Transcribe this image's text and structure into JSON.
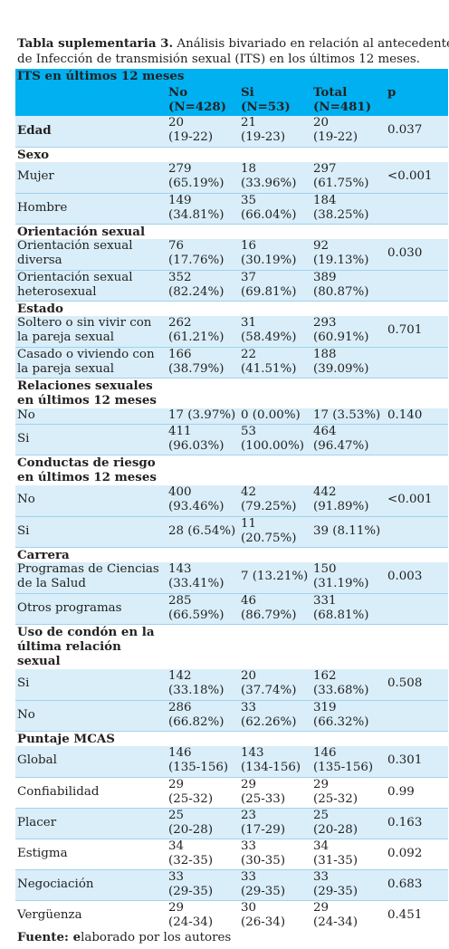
{
  "caption": {
    "bold": "Tabla suplementaria 3.",
    "line1_rest": " Análisis bivariado en relación al antecedente",
    "line2": "de Infección de transmisión sexual (ITS) en los últimos 12 meses."
  },
  "table": {
    "title": "ITS en últimos 12 meses",
    "columns": [
      {
        "l1": "No",
        "l2": "(N=428)"
      },
      {
        "l1": "Si",
        "l2": "(N=53)"
      },
      {
        "l1": "Total",
        "l2": "(N=481)"
      },
      {
        "l1": "p",
        "l2": ""
      }
    ],
    "sections": [
      {
        "title": "Edad",
        "title_row_values": {
          "no1": "20",
          "no2": "(19-22)",
          "si1": "21",
          "si2": "(19-23)",
          "tot1": "20",
          "tot2": "(19-22)",
          "p": "0.037"
        }
      },
      {
        "title": "Sexo"
      },
      {
        "title": "Orientación sexual"
      },
      {
        "title": "Estado"
      },
      {
        "title1": "Relaciones sexuales",
        "title2": "en últimos 12 meses"
      },
      {
        "title1": "Conductas de riesgo",
        "title2": "en últimos 12 meses"
      },
      {
        "title": "Carrera"
      },
      {
        "title1": "Uso de condón en la",
        "title2": "última relación",
        "title3": "sexual"
      },
      {
        "title": "Puntaje MCAS"
      }
    ],
    "rows": {
      "mujer": {
        "label": "Mujer",
        "no1": "279",
        "no2": "(65.19%)",
        "si1": "18",
        "si2": "(33.96%)",
        "tot1": "297",
        "tot2": "(61.75%)",
        "p": "<0.001"
      },
      "hombre": {
        "label": "Hombre",
        "no1": "149",
        "no2": "(34.81%)",
        "si1": "35",
        "si2": "(66.04%)",
        "tot1": "184",
        "tot2": "(38.25%)",
        "p": ""
      },
      "diversa": {
        "label1": "Orientación sexual",
        "label2": "diversa",
        "no1": "76",
        "no2": "(17.76%)",
        "si1": "16",
        "si2": "(30.19%)",
        "tot1": "92",
        "tot2": "(19.13%)",
        "p": "0.030"
      },
      "hetero": {
        "label1": "Orientación sexual",
        "label2": "heterosexual",
        "no1": "352",
        "no2": "(82.24%)",
        "si1": "37",
        "si2": "(69.81%)",
        "tot1": "389",
        "tot2": "(80.87%)",
        "p": ""
      },
      "soltero": {
        "label1": "Soltero o sin vivir con",
        "label2": "la pareja sexual",
        "no1": "262",
        "no2": "(61.21%)",
        "si1": "31",
        "si2": "(58.49%)",
        "tot1": "293",
        "tot2": "(60.91%)",
        "p": "0.701"
      },
      "casado": {
        "label1": "Casado o viviendo con",
        "label2": "la pareja sexual",
        "no1": "166",
        "no2": "(38.79%)",
        "si1": "22",
        "si2": "(41.51%)",
        "tot1": "188",
        "tot2": "(39.09%)",
        "p": ""
      },
      "rel_no": {
        "label": "No",
        "no": "17 (3.97%)",
        "si": "0 (0.00%)",
        "tot": "17 (3.53%)",
        "p": "0.140"
      },
      "rel_si": {
        "label": "Si",
        "no1": "411",
        "no2": "(96.03%)",
        "si1": "53",
        "si2": "(100.00%)",
        "tot1": "464",
        "tot2": "(96.47%)",
        "p": ""
      },
      "cond_no": {
        "label": "No",
        "no1": "400",
        "no2": "(93.46%)",
        "si1": "42",
        "si2": "(79.25%)",
        "tot1": "442",
        "tot2": "(91.89%)",
        "p": "<0.001"
      },
      "cond_si": {
        "label": "Si",
        "no": "28 (6.54%)",
        "si1": "11",
        "si2": "(20.75%)",
        "tot": "39 (8.11%)",
        "p": ""
      },
      "cs": {
        "label1": "Programas de Ciencias",
        "label2": "de la Salud",
        "no1": "143",
        "no2": "(33.41%)",
        "si": "7 (13.21%)",
        "tot1": "150",
        "tot2": "(31.19%)",
        "p": "0.003"
      },
      "otros": {
        "label": "Otros programas",
        "no1": "285",
        "no2": "(66.59%)",
        "si1": "46",
        "si2": "(86.79%)",
        "tot1": "331",
        "tot2": "(68.81%)",
        "p": ""
      },
      "condon_si": {
        "label": "Si",
        "no1": "142",
        "no2": "(33.18%)",
        "si1": "20",
        "si2": "(37.74%)",
        "tot1": "162",
        "tot2": "(33.68%)",
        "p": "0.508"
      },
      "condon_no": {
        "label": "No",
        "no1": "286",
        "no2": "(66.82%)",
        "si1": "33",
        "si2": "(62.26%)",
        "tot1": "319",
        "tot2": "(66.32%)",
        "p": ""
      },
      "global": {
        "label": "Global",
        "no1": "146",
        "no2": "(135-156)",
        "si1": "143",
        "si2": "(134-156)",
        "tot1": "146",
        "tot2": "(135-156)",
        "p": "0.301"
      },
      "confiab": {
        "label": "Confiabilidad",
        "no1": "29",
        "no2": "(25-32)",
        "si1": "29",
        "si2": "(25-33)",
        "tot1": "29",
        "tot2": "(25-32)",
        "p": "0.99"
      },
      "placer": {
        "label": "Placer",
        "no1": "25",
        "no2": "(20-28)",
        "si1": "23",
        "si2": "(17-29)",
        "tot1": "25",
        "tot2": "(20-28)",
        "p": "0.163"
      },
      "estigma": {
        "label": "Estigma",
        "no1": "34",
        "no2": "(32-35)",
        "si1": "33",
        "si2": "(30-35)",
        "tot1": "34",
        "tot2": "(31-35)",
        "p": "0.092"
      },
      "negoc": {
        "label": "Negociación",
        "no1": "33",
        "no2": "(29-35)",
        "si1": "33",
        "si2": "(29-35)",
        "tot1": "33",
        "tot2": "(29-35)",
        "p": "0.683"
      },
      "verg": {
        "label": "Vergüenza",
        "no1": "29",
        "no2": "(24-34)",
        "si1": "30",
        "si2": "(26-34)",
        "tot1": "29",
        "tot2": "(24-34)",
        "p": "0.451"
      }
    }
  },
  "footer": {
    "bold": "Fuente: e",
    "rest": "laborado por los autores"
  },
  "colors": {
    "header": "#00b0f0",
    "band": "#daeef9",
    "rule": "#9fd2ef"
  }
}
